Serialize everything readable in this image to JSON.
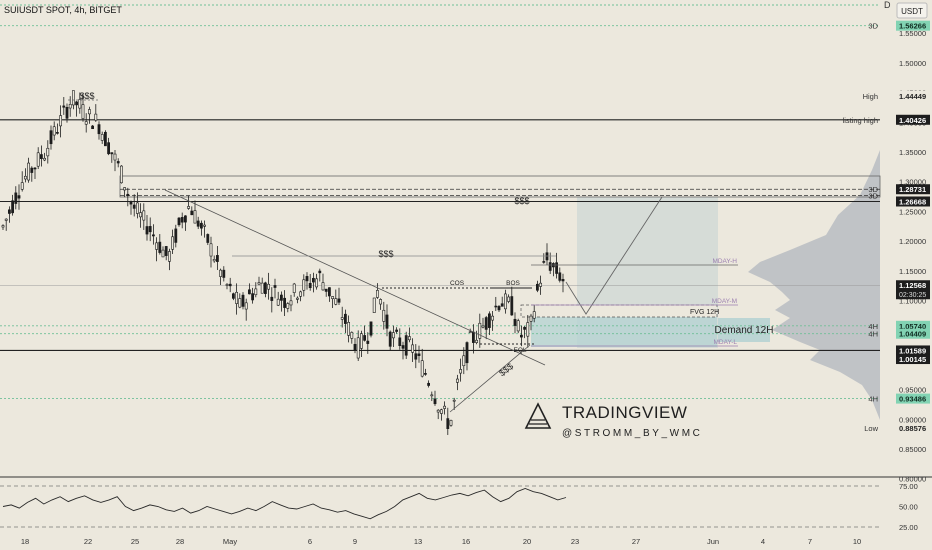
{
  "header": {
    "symbol": "SUIUSDT SPOT, 4h, BITGET",
    "currency_button": "USDT"
  },
  "colors": {
    "background": "#ece8dd",
    "candle": "#1d1d1d",
    "dotted_green": "#6fbf97",
    "price_box": "#1d1d1d",
    "green_box": "#82d3b3",
    "demand_zone": "#b7d3d3",
    "target_box": "#cfd8d4",
    "volume_profile": "#b8bcc2",
    "purple": "#9b7fb0",
    "rsi_line": "#2a2a2a"
  },
  "chart_data": {
    "type": "candlestick",
    "title": "SUIUSDT SPOT, 4h, BITGET",
    "price_axis": {
      "ylim": [
        0.78,
        1.6
      ],
      "ticks": [
        "1.55000",
        "1.50000",
        "1.45000",
        "1.40000",
        "1.35000",
        "1.30000",
        "1.25000",
        "1.20000",
        "1.15000",
        "1.10000",
        "1.05000",
        "1.00000",
        "0.95000",
        "0.90000",
        "0.85000",
        "0.80000"
      ],
      "tick_values": [
        1.55,
        1.5,
        1.45,
        1.4,
        1.35,
        1.3,
        1.25,
        1.2,
        1.15,
        1.1,
        1.05,
        1.0,
        0.95,
        0.9,
        0.85,
        0.8
      ]
    },
    "x_axis": {
      "labels": [
        "18",
        "22",
        "25",
        "28",
        "May",
        "6",
        "9",
        "13",
        "16",
        "20",
        "23",
        "27",
        "Jun",
        "4",
        "7",
        "10"
      ]
    },
    "horizontal_levels": [
      {
        "label": "3D",
        "value": 1.56266,
        "style": "dotted-green",
        "box": "green"
      },
      {
        "label": "High",
        "value": 1.44449,
        "style": "none",
        "box": "plain"
      },
      {
        "label": "listing high",
        "value": 1.40426,
        "style": "solid-dark",
        "box": "dark"
      },
      {
        "label": "3D",
        "value": 1.28731,
        "style": "dashed-dark",
        "box": "dark"
      },
      {
        "label": "3D",
        "value": 1.27681,
        "style": "dashed-dark",
        "box": "none"
      },
      {
        "label": "",
        "value": 1.26668,
        "style": "solid-dark",
        "box": "dark"
      },
      {
        "label": "",
        "value": 1.12568,
        "style": "current",
        "box": "dark",
        "countdown": "02:30:25"
      },
      {
        "label": "4H",
        "value": 1.0574,
        "style": "dotted-green",
        "box": "green"
      },
      {
        "label": "4H",
        "value": 1.04409,
        "style": "dotted-green",
        "box": "green"
      },
      {
        "label": "",
        "value": 1.01589,
        "style": "solid-dark",
        "box": "dark"
      },
      {
        "label": "",
        "value": 1.00145,
        "style": "none",
        "box": "dark"
      },
      {
        "label": "4H",
        "value": 0.93486,
        "style": "dotted-green",
        "box": "green"
      },
      {
        "label": "Low",
        "value": 0.88576,
        "style": "none",
        "box": "plain"
      }
    ],
    "annotations": {
      "liquidity_top": "$$$",
      "liquidity_mid": "$$$",
      "liquidity_upper": "$$$",
      "liquidity_low": "$$$",
      "cos": "COS",
      "bos": "BOS",
      "eql": "EQL",
      "fvg": "FVG 12H",
      "demand": "Demand 12H",
      "mday_h": "MDAY-H",
      "mday_m": "MDAY-M",
      "mday_l": "MDAY-L"
    },
    "rsi": {
      "ticks": [
        "75.00",
        "50.00",
        "25.00"
      ],
      "tick_values": [
        75,
        50,
        25
      ],
      "values": [
        50,
        52,
        48,
        55,
        60,
        53,
        58,
        62,
        56,
        60,
        63,
        58,
        55,
        58,
        62,
        50,
        45,
        48,
        52,
        50,
        46,
        44,
        48,
        42,
        45,
        50,
        47,
        44,
        41,
        44,
        48,
        45,
        50,
        56,
        52,
        48,
        47,
        50,
        53,
        48,
        46,
        43,
        45,
        41,
        38,
        35,
        40,
        44,
        50,
        58,
        62,
        66,
        60,
        58,
        61,
        64,
        66,
        63,
        67,
        70,
        62,
        56,
        60,
        68,
        72,
        68,
        66,
        62,
        58,
        61
      ]
    }
  },
  "watermark": {
    "brand": "TRADINGVIEW",
    "handle": "@STROMM_BY_WMC"
  },
  "corner_label": "D"
}
